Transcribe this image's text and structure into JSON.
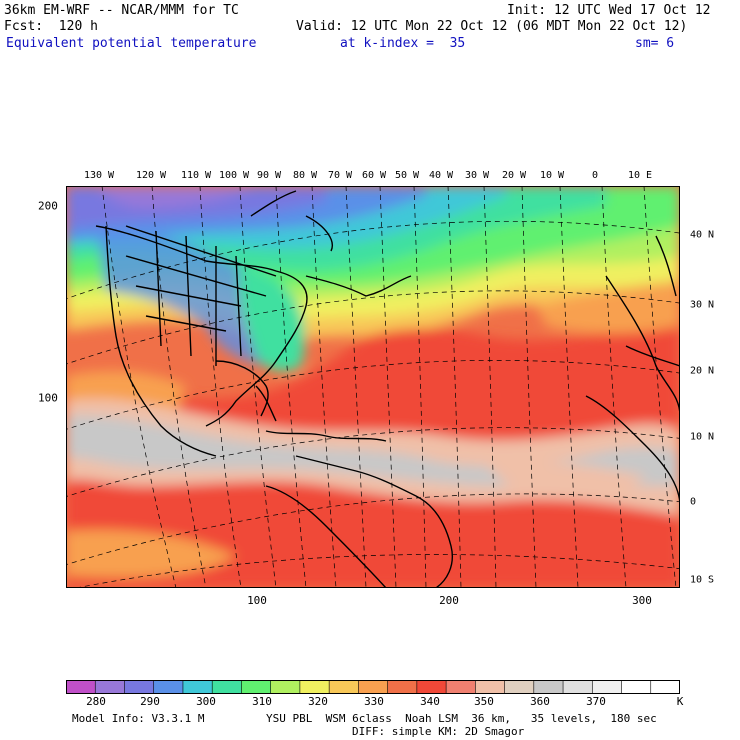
{
  "header": {
    "line1_left": "36km EM-WRF -- NCAR/MMM for TC",
    "line1_right": "Init: 12 UTC Wed 17 Oct 12",
    "line2_left": "Fcst:  120 h",
    "line2_right": "Valid: 12 UTC Mon 22 Oct 12 (06 MDT Mon 22 Oct 12)",
    "field": "Equivalent potential temperature",
    "level": "at k-index =  35",
    "smooth": "sm= 6"
  },
  "axes": {
    "top_lon": [
      "130 W",
      "120 W",
      "110 W",
      "100 W",
      "90 W",
      "80 W",
      "70 W",
      "60 W",
      "50 W",
      "40 W",
      "30 W",
      "20 W",
      "10 W",
      "0",
      "10 E"
    ],
    "left_grid": [
      "200",
      "100"
    ],
    "bottom_grid": [
      "100",
      "200",
      "300"
    ],
    "right_lat": [
      "40 N",
      "30 N",
      "20 N",
      "10 N",
      "0",
      "10 S"
    ]
  },
  "colorbar": {
    "labels": [
      "280",
      "290",
      "300",
      "310",
      "320",
      "330",
      "340",
      "350",
      "360",
      "370"
    ],
    "unit": "K",
    "colors": [
      "#c050c8",
      "#9878d8",
      "#7878e0",
      "#5a90e8",
      "#40c8d8",
      "#40e0a0",
      "#60f070",
      "#b0f060",
      "#f0f060",
      "#f8c858",
      "#f8a050",
      "#f07048",
      "#f04838",
      "#f08070",
      "#f0c0a8",
      "#e0d0c0",
      "#c8c8c8",
      "#e0e0e0",
      "#f0f0f0",
      "#ffffff",
      "#ffffff"
    ]
  },
  "footer": {
    "model": "Model Info: V3.3.1 M",
    "physics": "YSU PBL  WSM 6class  Noah LSM  36 km,   35 levels,  180 sec",
    "physics2": "DIFF: simple KM: 2D Smagor"
  }
}
